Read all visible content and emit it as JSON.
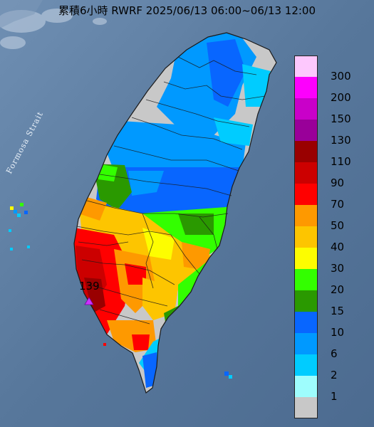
{
  "title": "累積6小時 RWRF 2025/06/13 06:00~06/13 12:00",
  "sea_label": "Formosa Strait",
  "max_station": {
    "value": "139",
    "marker_icon": "triangle-marker-icon"
  },
  "colors": {
    "sea": "#5c7b9e",
    "land_no_rain": "#c8c8c8",
    "county_border": "#1a1a1a"
  },
  "legend": [
    {
      "label": "300",
      "color": "#fdc8fd"
    },
    {
      "label": "200",
      "color": "#fd00fd"
    },
    {
      "label": "150",
      "color": "#c900c9"
    },
    {
      "label": "130",
      "color": "#990099"
    },
    {
      "label": "110",
      "color": "#990000"
    },
    {
      "label": "90",
      "color": "#cc0000"
    },
    {
      "label": "70",
      "color": "#ff0000"
    },
    {
      "label": "50",
      "color": "#fe9900"
    },
    {
      "label": "40",
      "color": "#fdc500"
    },
    {
      "label": "30",
      "color": "#fdfd00"
    },
    {
      "label": "20",
      "color": "#33ff00"
    },
    {
      "label": "15",
      "color": "#2a9900"
    },
    {
      "label": "10",
      "color": "#0866ff"
    },
    {
      "label": "6",
      "color": "#0099ff"
    },
    {
      "label": "2",
      "color": "#00ccff"
    },
    {
      "label": "1",
      "color": "#9efdfd"
    },
    {
      "label": "",
      "color": "#c8c8c8"
    }
  ]
}
